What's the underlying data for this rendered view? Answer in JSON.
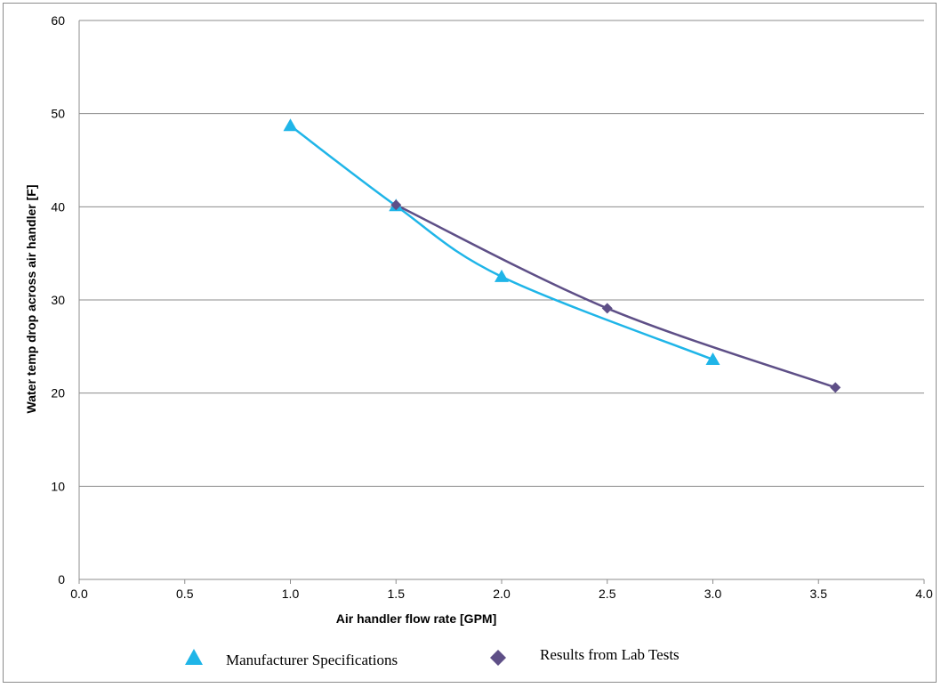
{
  "chart_data": {
    "type": "scatter",
    "title": "",
    "xlabel": "Air handler flow rate [GPM]",
    "ylabel": "Water temp drop across air handler [F]",
    "xlim": [
      0,
      4
    ],
    "ylim": [
      0,
      60
    ],
    "x_ticks": [
      "0.0",
      "0.5",
      "1.0",
      "1.5",
      "2.0",
      "2.5",
      "3.0",
      "3.5",
      "4.0"
    ],
    "y_ticks": [
      "0",
      "10",
      "20",
      "30",
      "40",
      "50",
      "60"
    ],
    "grid": "horizontal",
    "legend_position": "bottom",
    "series": [
      {
        "name": "Manufacturer Specifications",
        "marker": "triangle",
        "color": "#1fb5e8",
        "line": "smooth",
        "x": [
          1.0,
          1.5,
          2.0,
          3.0
        ],
        "y": [
          48.7,
          40.1,
          32.5,
          23.6
        ]
      },
      {
        "name": "Results from Lab Tests",
        "marker": "diamond",
        "color": "#5e4f87",
        "line": "smooth",
        "x": [
          1.5,
          2.5,
          3.58
        ],
        "y": [
          40.2,
          29.1,
          20.6
        ]
      }
    ]
  }
}
